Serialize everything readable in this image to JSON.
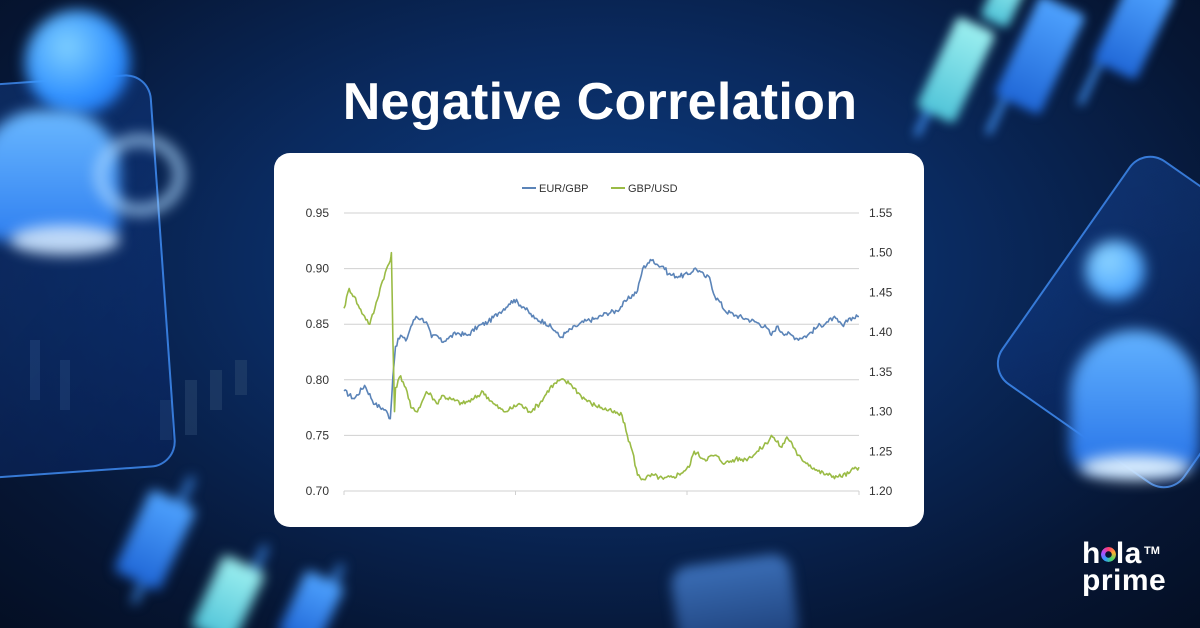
{
  "page": {
    "title": "Negative Correlation"
  },
  "brand": {
    "line1_a": "h",
    "line1_b": "la",
    "line2": "prime",
    "trademark": "TM"
  },
  "colors": {
    "eur_gbp": "#5b84b8",
    "gbp_usd": "#9abb45",
    "grid": "#d0d0d0",
    "axis_text": "#333333"
  },
  "chart_data": {
    "type": "line",
    "title": "",
    "legend": {
      "placement": "top-center",
      "entries": [
        "EUR/GBP",
        "GBP/USD"
      ]
    },
    "grid": true,
    "x_range": [
      0,
      100
    ],
    "y_left": {
      "ylim": [
        0.7,
        0.95
      ],
      "ticks": [
        "0.95",
        "0.90",
        "0.85",
        "0.80",
        "0.75",
        "0.70"
      ]
    },
    "y_right": {
      "ylim": [
        1.2,
        1.55
      ],
      "ticks": [
        "1.55",
        "1.50",
        "1.45",
        "1.40",
        "1.35",
        "1.30",
        "1.25",
        "1.20"
      ]
    },
    "series": [
      {
        "name": "EUR/GBP",
        "axis": "left",
        "points": [
          [
            0,
            0.79
          ],
          [
            2,
            0.783
          ],
          [
            4,
            0.795
          ],
          [
            6,
            0.778
          ],
          [
            8,
            0.773
          ],
          [
            9,
            0.765
          ],
          [
            9.5,
            0.803
          ],
          [
            10,
            0.83
          ],
          [
            11,
            0.84
          ],
          [
            12,
            0.835
          ],
          [
            13,
            0.848
          ],
          [
            14,
            0.857
          ],
          [
            15,
            0.855
          ],
          [
            16,
            0.852
          ],
          [
            17,
            0.838
          ],
          [
            18,
            0.84
          ],
          [
            19,
            0.834
          ],
          [
            20,
            0.837
          ],
          [
            22,
            0.842
          ],
          [
            24,
            0.84
          ],
          [
            26,
            0.848
          ],
          [
            28,
            0.852
          ],
          [
            30,
            0.86
          ],
          [
            32,
            0.868
          ],
          [
            33,
            0.872
          ],
          [
            35,
            0.865
          ],
          [
            37,
            0.855
          ],
          [
            39,
            0.852
          ],
          [
            41,
            0.844
          ],
          [
            42,
            0.838
          ],
          [
            43,
            0.842
          ],
          [
            45,
            0.848
          ],
          [
            47,
            0.853
          ],
          [
            49,
            0.855
          ],
          [
            51,
            0.86
          ],
          [
            53,
            0.862
          ],
          [
            55,
            0.872
          ],
          [
            57,
            0.88
          ],
          [
            58,
            0.9
          ],
          [
            59,
            0.905
          ],
          [
            60,
            0.908
          ],
          [
            61,
            0.903
          ],
          [
            62,
            0.902
          ],
          [
            63,
            0.895
          ],
          [
            65,
            0.893
          ],
          [
            67,
            0.895
          ],
          [
            68,
            0.9
          ],
          [
            69,
            0.898
          ],
          [
            70,
            0.893
          ],
          [
            71,
            0.892
          ],
          [
            72,
            0.875
          ],
          [
            73,
            0.87
          ],
          [
            74,
            0.862
          ],
          [
            76,
            0.858
          ],
          [
            78,
            0.855
          ],
          [
            80,
            0.852
          ],
          [
            82,
            0.847
          ],
          [
            83,
            0.84
          ],
          [
            84,
            0.848
          ],
          [
            85,
            0.843
          ],
          [
            87,
            0.84
          ],
          [
            88,
            0.837
          ],
          [
            90,
            0.84
          ],
          [
            92,
            0.848
          ],
          [
            94,
            0.852
          ],
          [
            95,
            0.856
          ],
          [
            96,
            0.852
          ],
          [
            97,
            0.848
          ],
          [
            98,
            0.855
          ],
          [
            100,
            0.857
          ]
        ]
      },
      {
        "name": "GBP/USD",
        "axis": "right",
        "points": [
          [
            0,
            1.43
          ],
          [
            1,
            1.455
          ],
          [
            2,
            1.445
          ],
          [
            3,
            1.43
          ],
          [
            4,
            1.42
          ],
          [
            5,
            1.41
          ],
          [
            6,
            1.43
          ],
          [
            7,
            1.455
          ],
          [
            8,
            1.475
          ],
          [
            9,
            1.49
          ],
          [
            9.2,
            1.5
          ],
          [
            9.5,
            1.39
          ],
          [
            9.8,
            1.3
          ],
          [
            10,
            1.33
          ],
          [
            11,
            1.345
          ],
          [
            12,
            1.33
          ],
          [
            13,
            1.305
          ],
          [
            14,
            1.3
          ],
          [
            15,
            1.31
          ],
          [
            16,
            1.325
          ],
          [
            17,
            1.32
          ],
          [
            18,
            1.31
          ],
          [
            19,
            1.32
          ],
          [
            21,
            1.315
          ],
          [
            23,
            1.31
          ],
          [
            25,
            1.315
          ],
          [
            27,
            1.325
          ],
          [
            29,
            1.31
          ],
          [
            31,
            1.3
          ],
          [
            32,
            1.302
          ],
          [
            34,
            1.31
          ],
          [
            36,
            1.3
          ],
          [
            38,
            1.31
          ],
          [
            40,
            1.33
          ],
          [
            42,
            1.34
          ],
          [
            44,
            1.335
          ],
          [
            46,
            1.32
          ],
          [
            48,
            1.31
          ],
          [
            50,
            1.305
          ],
          [
            52,
            1.3
          ],
          [
            54,
            1.295
          ],
          [
            55,
            1.27
          ],
          [
            56,
            1.25
          ],
          [
            57,
            1.22
          ],
          [
            58,
            1.215
          ],
          [
            60,
            1.22
          ],
          [
            62,
            1.215
          ],
          [
            64,
            1.218
          ],
          [
            66,
            1.225
          ],
          [
            67,
            1.23
          ],
          [
            68,
            1.25
          ],
          [
            70,
            1.24
          ],
          [
            72,
            1.245
          ],
          [
            74,
            1.235
          ],
          [
            76,
            1.24
          ],
          [
            78,
            1.24
          ],
          [
            80,
            1.248
          ],
          [
            82,
            1.26
          ],
          [
            83,
            1.27
          ],
          [
            84,
            1.262
          ],
          [
            85,
            1.255
          ],
          [
            86,
            1.268
          ],
          [
            87,
            1.26
          ],
          [
            88,
            1.245
          ],
          [
            90,
            1.235
          ],
          [
            92,
            1.225
          ],
          [
            94,
            1.22
          ],
          [
            96,
            1.218
          ],
          [
            98,
            1.222
          ],
          [
            99,
            1.228
          ],
          [
            100,
            1.23
          ]
        ]
      }
    ]
  }
}
